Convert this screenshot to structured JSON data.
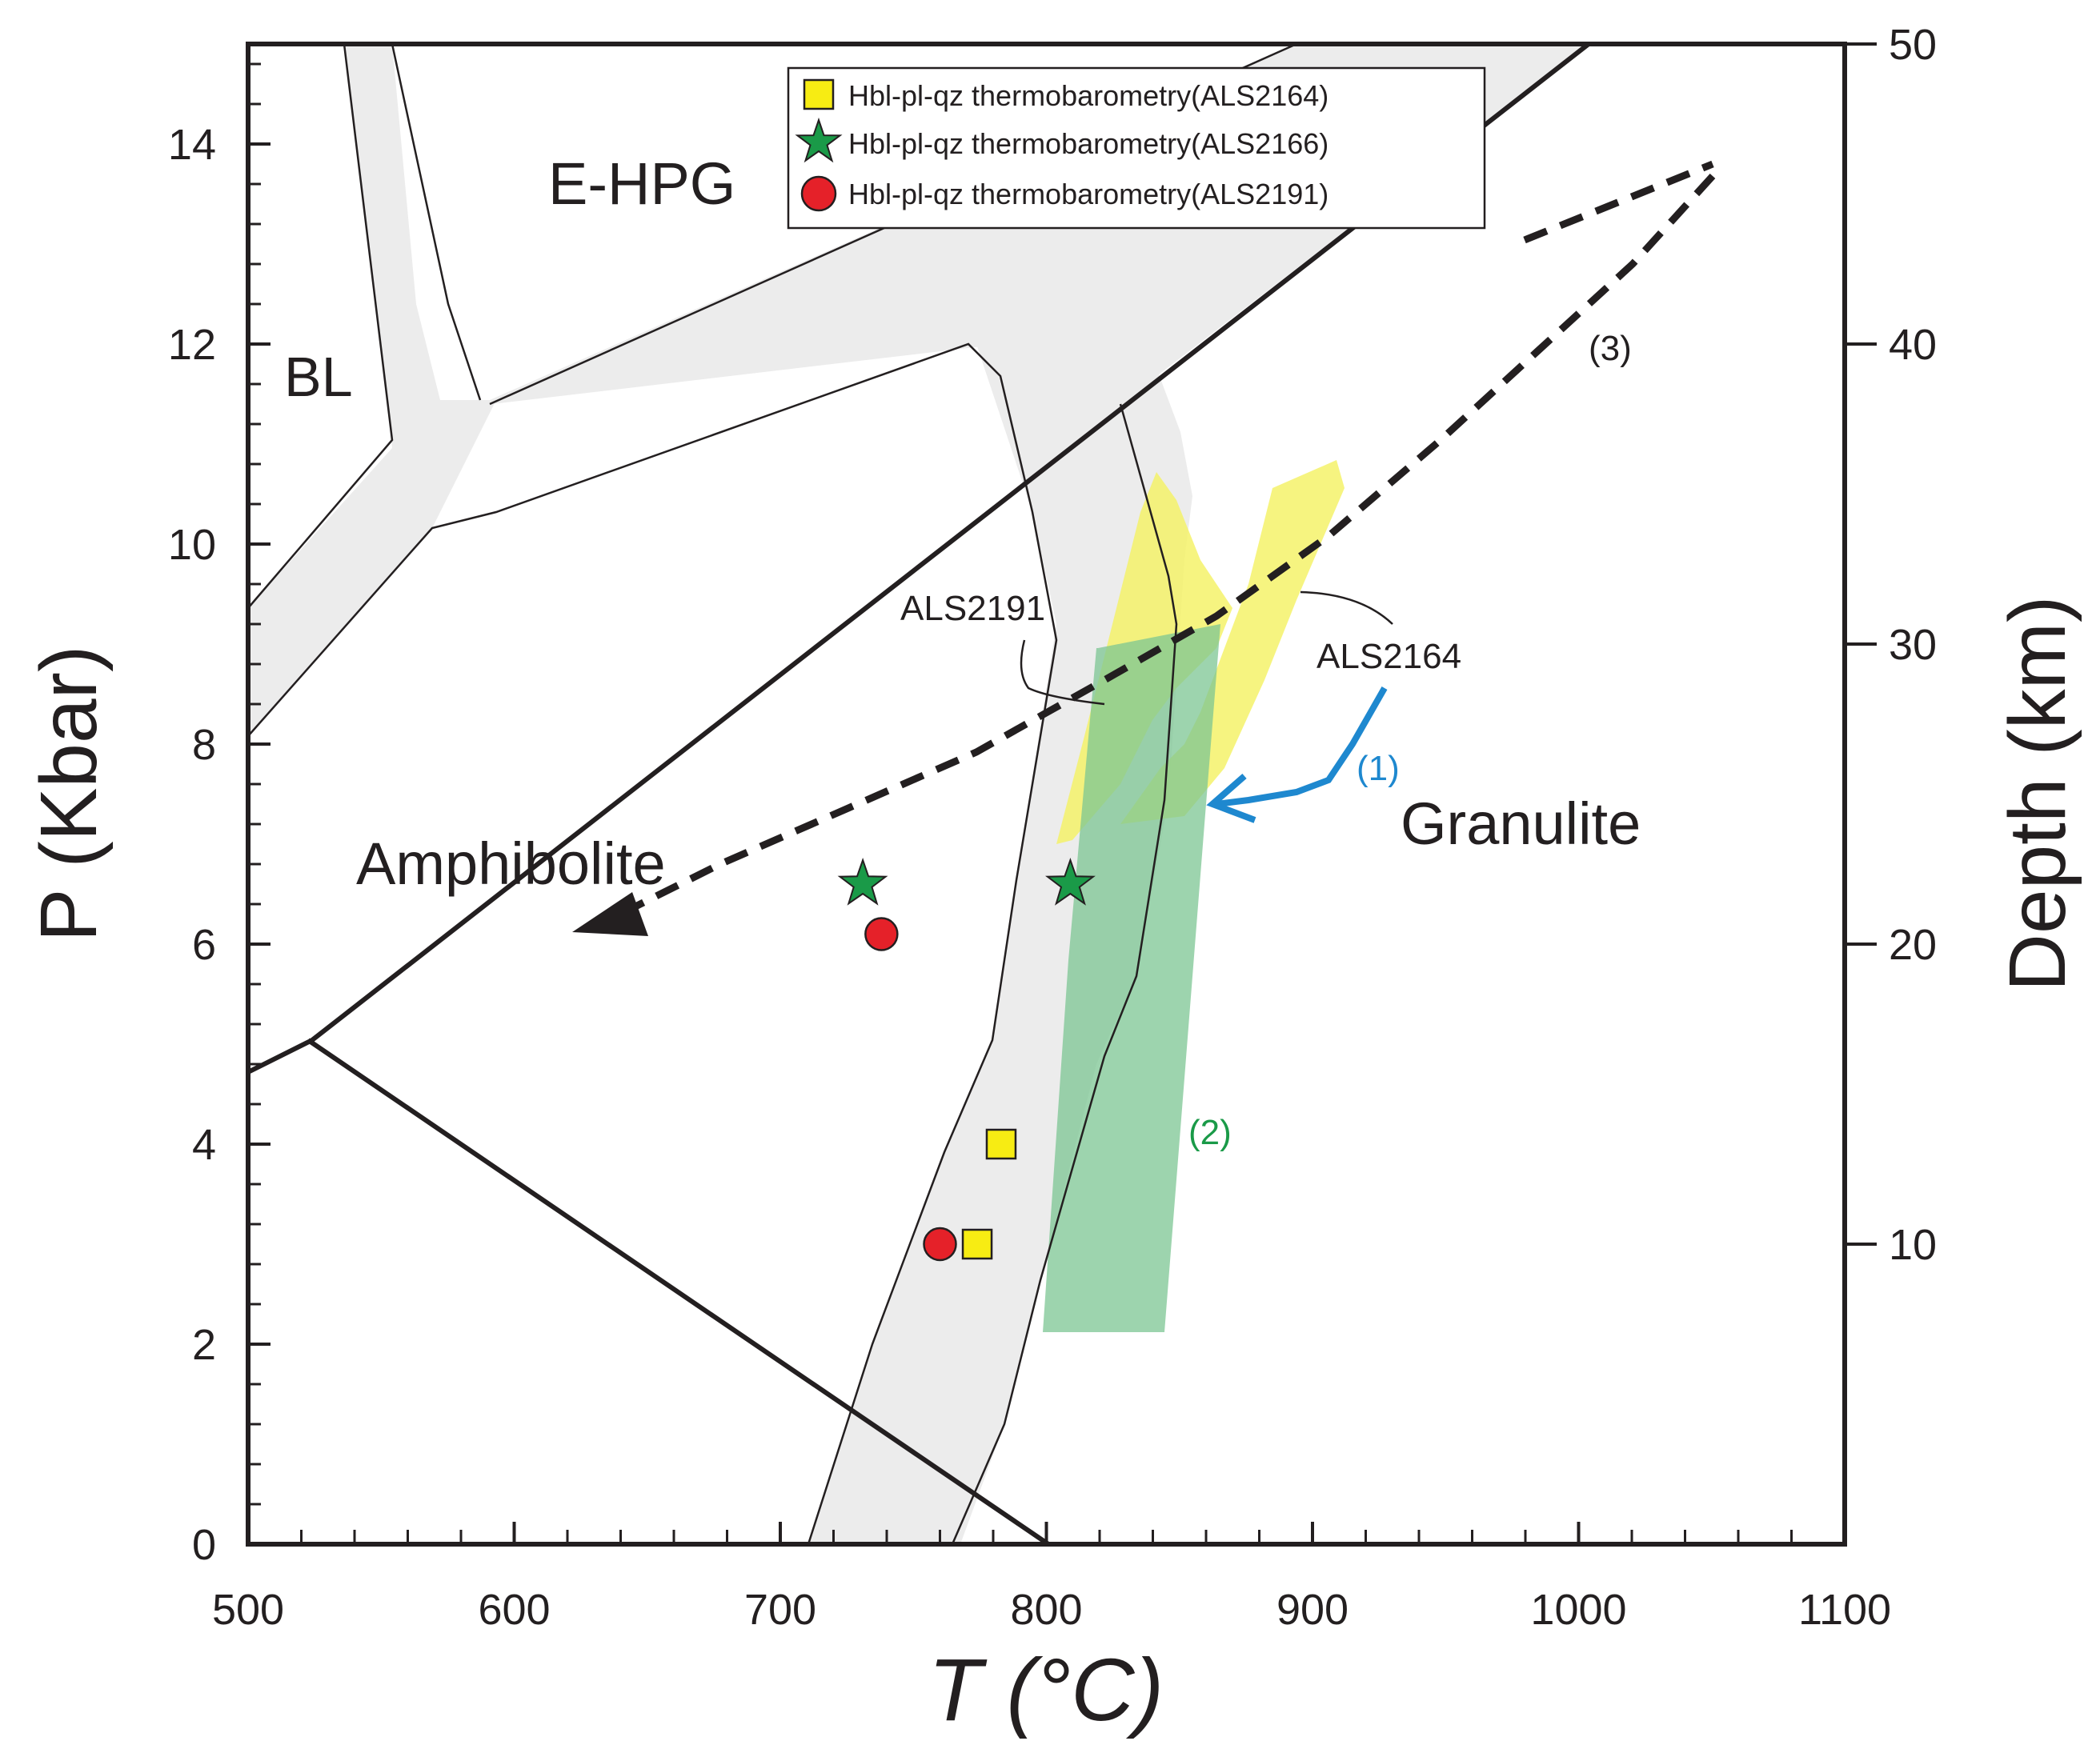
{
  "chart_data": {
    "type": "scatter",
    "title": "",
    "xlabel": "T (°C)",
    "ylabel": "P (Kbar)",
    "y2label": "Depth (km)",
    "xlim": [
      500,
      1100
    ],
    "ylim": [
      0,
      15
    ],
    "y2lim": [
      0,
      50
    ],
    "xticks": [
      "500",
      "600",
      "700",
      "800",
      "900",
      "1000",
      "1100"
    ],
    "yticks": [
      "0",
      "2",
      "4",
      "6",
      "8",
      "10",
      "12",
      "14"
    ],
    "y2ticks": [
      "10",
      "20",
      "30",
      "40",
      "50"
    ],
    "legend_position": "top-center",
    "series": [
      {
        "name": "Hbl-pl-qz thermobarometry(ALS2164)",
        "marker": "square",
        "color": "#f7ec13",
        "points": [
          [
            783,
            4.0
          ],
          [
            774,
            3.0
          ]
        ]
      },
      {
        "name": "Hbl-pl-qz thermobarometry(ALS2166)",
        "marker": "star",
        "color": "#1a9a48",
        "points": [
          [
            731,
            6.6
          ],
          [
            809,
            6.6
          ]
        ]
      },
      {
        "name": "Hbl-pl-qz thermobarometry(ALS2191)",
        "marker": "circle",
        "color": "#e52129",
        "points": [
          [
            738,
            6.1
          ],
          [
            760,
            3.0
          ]
        ]
      }
    ],
    "region_labels": {
      "bl": "BL",
      "ehpg": "E-HPG",
      "amphibolite": "Amphibolite",
      "granulite": "Granulite"
    },
    "annotations": {
      "als2191": "ALS2191",
      "als2164": "ALS2164",
      "path1": "(1)",
      "path2": "(2)",
      "path3": "(3)"
    },
    "colors": {
      "facies_band": "#ececec",
      "yellow_field": "#f4f26a",
      "green_field": "#7cc593",
      "path1_arrow": "#1e88cf",
      "path2_label": "#1a9a48",
      "axis": "#231f20"
    }
  }
}
